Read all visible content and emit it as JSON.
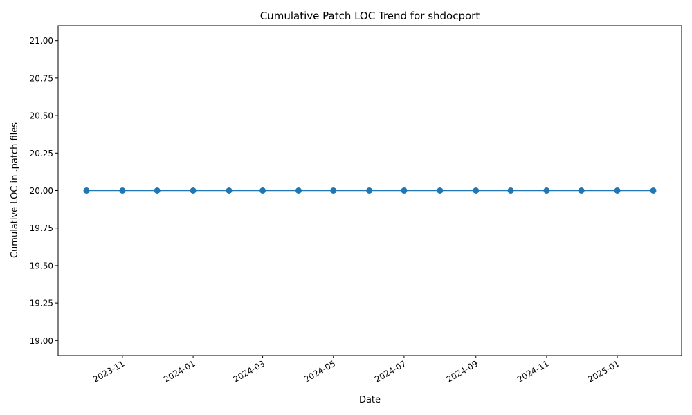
{
  "chart_data": {
    "type": "line",
    "title": "Cumulative Patch LOC Trend for shdocport",
    "xlabel": "Date",
    "ylabel": "Cumulative LOC in .patch files",
    "x": [
      "2023-10-01",
      "2023-11-01",
      "2023-12-01",
      "2024-01-01",
      "2024-02-01",
      "2024-03-01",
      "2024-04-01",
      "2024-05-01",
      "2024-06-01",
      "2024-07-01",
      "2024-08-01",
      "2024-09-01",
      "2024-10-01",
      "2024-11-01",
      "2024-12-01",
      "2025-01-01",
      "2025-02-01"
    ],
    "series": [
      {
        "values": [
          20,
          20,
          20,
          20,
          20,
          20,
          20,
          20,
          20,
          20,
          20,
          20,
          20,
          20,
          20,
          20,
          20
        ]
      }
    ],
    "ylim": [
      18.9,
      21.1
    ],
    "yticks": [
      "19.00",
      "19.25",
      "19.50",
      "19.75",
      "20.00",
      "20.25",
      "20.50",
      "20.75",
      "21.00"
    ],
    "xticks": [
      "2023-11",
      "2024-01",
      "2024-03",
      "2024-05",
      "2024-07",
      "2024-09",
      "2024-11",
      "2025-01"
    ],
    "grid": false,
    "color": "#1f77b4"
  }
}
